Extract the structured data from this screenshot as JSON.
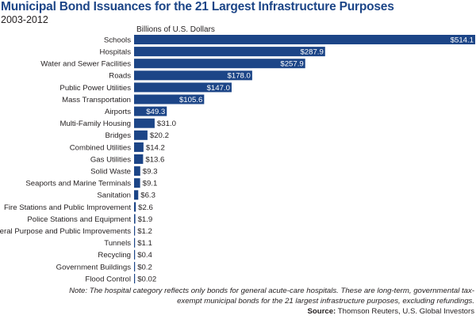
{
  "chart_data": {
    "type": "bar",
    "orientation": "horizontal",
    "title": "Municipal Bond Issuances for the 21 Largest Infrastructure Purposes",
    "subtitle": "2003-2012",
    "unit_label": "Billions of U.S. Dollars",
    "bar_color": "#1c4587",
    "categories": [
      "Schools",
      "Hospitals",
      "Water and Sewer Facilities",
      "Roads",
      "Public Power Utilities",
      "Mass Transportation",
      "Airports",
      "Multi-Family Housing",
      "Bridges",
      "Combined Utilities",
      "Gas Utilities",
      "Solid Waste",
      "Seaports and Marine Terminals",
      "Sanitation",
      "Fire Stations and Public Improvement",
      "Police Stations and Equipment",
      "General Purpose and Public Improvements",
      "Tunnels",
      "Recycling",
      "Government Buildings",
      "Flood Control"
    ],
    "values": [
      514.1,
      287.9,
      257.9,
      178.0,
      147.0,
      105.6,
      49.3,
      31.0,
      20.2,
      14.2,
      13.6,
      9.3,
      9.1,
      6.3,
      2.6,
      1.9,
      1.2,
      1.1,
      0.4,
      0.2,
      0.02
    ],
    "value_labels": [
      "$514.1",
      "$287.9",
      "$257.9",
      "$178.0",
      "$147.0",
      "$105.6",
      "$49.3",
      "$31.0",
      "$20.2",
      "$14.2",
      "$13.6",
      "$9.3",
      "$9.1",
      "$6.3",
      "$2.6",
      "$1.9",
      "$1.2",
      "$1.1",
      "$0.4",
      "$0.2",
      "$0.02"
    ],
    "xlim": [
      0,
      514.1
    ],
    "grid": false,
    "legend": false
  },
  "footer": {
    "note": "Note: The hospital category reflects only bonds for general acute-care hospitals. These are long-term, governmental tax-exempt municipal bonds for the 21 largest infrastructure purposes, excluding refundings.",
    "source_label": "Source:",
    "source_text": "Thomson Reuters, U.S. Global Investors"
  }
}
